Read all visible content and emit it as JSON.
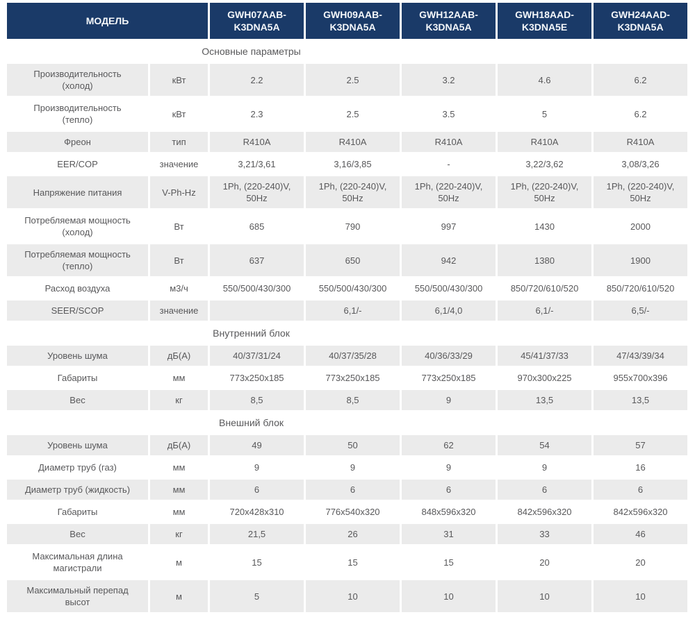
{
  "colors": {
    "header_bg": "#1a3a68",
    "header_text": "#f4f7fa",
    "row_alt_bg": "#ebebeb",
    "text": "#58585a"
  },
  "table": {
    "header": {
      "model_label": "МОДЕЛЬ",
      "models": [
        "GWH07AAB-K3DNA5A",
        "GWH09AAB-K3DNA5A",
        "GWH12AAB-K3DNA5A",
        "GWH18AAD-K3DNA5E",
        "GWH24AAD-K3DNA5A"
      ]
    },
    "sections": [
      {
        "title": "Основные параметры",
        "rows": [
          {
            "param": "Производительность\n(холод)",
            "unit": "кВт",
            "values": [
              "2.2",
              "2.5",
              "3.2",
              "4.6",
              "6.2"
            ]
          },
          {
            "param": "Производительность\n(тепло)",
            "unit": "кВт",
            "values": [
              "2.3",
              "2.5",
              "3.5",
              "5",
              "6.2"
            ]
          },
          {
            "param": "Фреон",
            "unit": "тип",
            "values": [
              "R410A",
              "R410A",
              "R410A",
              "R410A",
              "R410A"
            ]
          },
          {
            "param": "EER/COP",
            "unit": "значение",
            "values": [
              "3,21/3,61",
              "3,16/3,85",
              "-",
              "3,22/3,62",
              "3,08/3,26"
            ]
          },
          {
            "param": "Напряжение питания",
            "unit": "V-Ph-Hz",
            "values": [
              "1Ph, (220-240)V,\n50Hz",
              "1Ph, (220-240)V,\n50Hz",
              "1Ph, (220-240)V,\n50Hz",
              "1Ph, (220-240)V,\n50Hz",
              "1Ph, (220-240)V,\n50Hz"
            ]
          },
          {
            "param": "Потребляемая мощность\n(холод)",
            "unit": "Вт",
            "values": [
              "685",
              "790",
              "997",
              "1430",
              "2000"
            ]
          },
          {
            "param": "Потребляемая мощность\n(тепло)",
            "unit": "Вт",
            "values": [
              "637",
              "650",
              "942",
              "1380",
              "1900"
            ]
          },
          {
            "param": "Расход воздуха",
            "unit": "м3/ч",
            "values": [
              "550/500/430/300",
              "550/500/430/300",
              "550/500/430/300",
              "850/720/610/520",
              "850/720/610/520"
            ]
          },
          {
            "param": "SEER/SCOP",
            "unit": "значение",
            "values": [
              "",
              "6,1/-",
              "6,1/4,0",
              "6,1/-",
              "6,5/-"
            ]
          }
        ]
      },
      {
        "title": "Внутренний блок",
        "rows": [
          {
            "param": "Уровень шума",
            "unit": "дБ(А)",
            "values": [
              "40/37/31/24",
              "40/37/35/28",
              "40/36/33/29",
              "45/41/37/33",
              "47/43/39/34"
            ]
          },
          {
            "param": "Габариты",
            "unit": "мм",
            "values": [
              "773x250x185",
              "773x250x185",
              "773x250x185",
              "970x300x225",
              "955x700x396"
            ]
          },
          {
            "param": "Вес",
            "unit": "кг",
            "values": [
              "8,5",
              "8,5",
              "9",
              "13,5",
              "13,5"
            ]
          }
        ]
      },
      {
        "title": "Внешний блок",
        "rows": [
          {
            "param": "Уровень шума",
            "unit": "дБ(А)",
            "values": [
              "49",
              "50",
              "62",
              "54",
              "57"
            ]
          },
          {
            "param": "Диаметр труб (газ)",
            "unit": "мм",
            "values": [
              "9",
              "9",
              "9",
              "9",
              "16"
            ]
          },
          {
            "param": "Диаметр труб (жидкость)",
            "unit": "мм",
            "values": [
              "6",
              "6",
              "6",
              "6",
              "6"
            ]
          },
          {
            "param": "Габариты",
            "unit": "мм",
            "values": [
              "720x428x310",
              "776x540x320",
              "848x596x320",
              "842x596x320",
              "842x596x320"
            ]
          },
          {
            "param": "Вес",
            "unit": "кг",
            "values": [
              "21,5",
              "26",
              "31",
              "33",
              "46"
            ]
          },
          {
            "param": "Максимальная длина\nмагистрали",
            "unit": "м",
            "values": [
              "15",
              "15",
              "15",
              "20",
              "20"
            ]
          },
          {
            "param": "Максимальный перепад\nвысот",
            "unit": "м",
            "values": [
              "5",
              "10",
              "10",
              "10",
              "10"
            ]
          }
        ]
      }
    ]
  }
}
